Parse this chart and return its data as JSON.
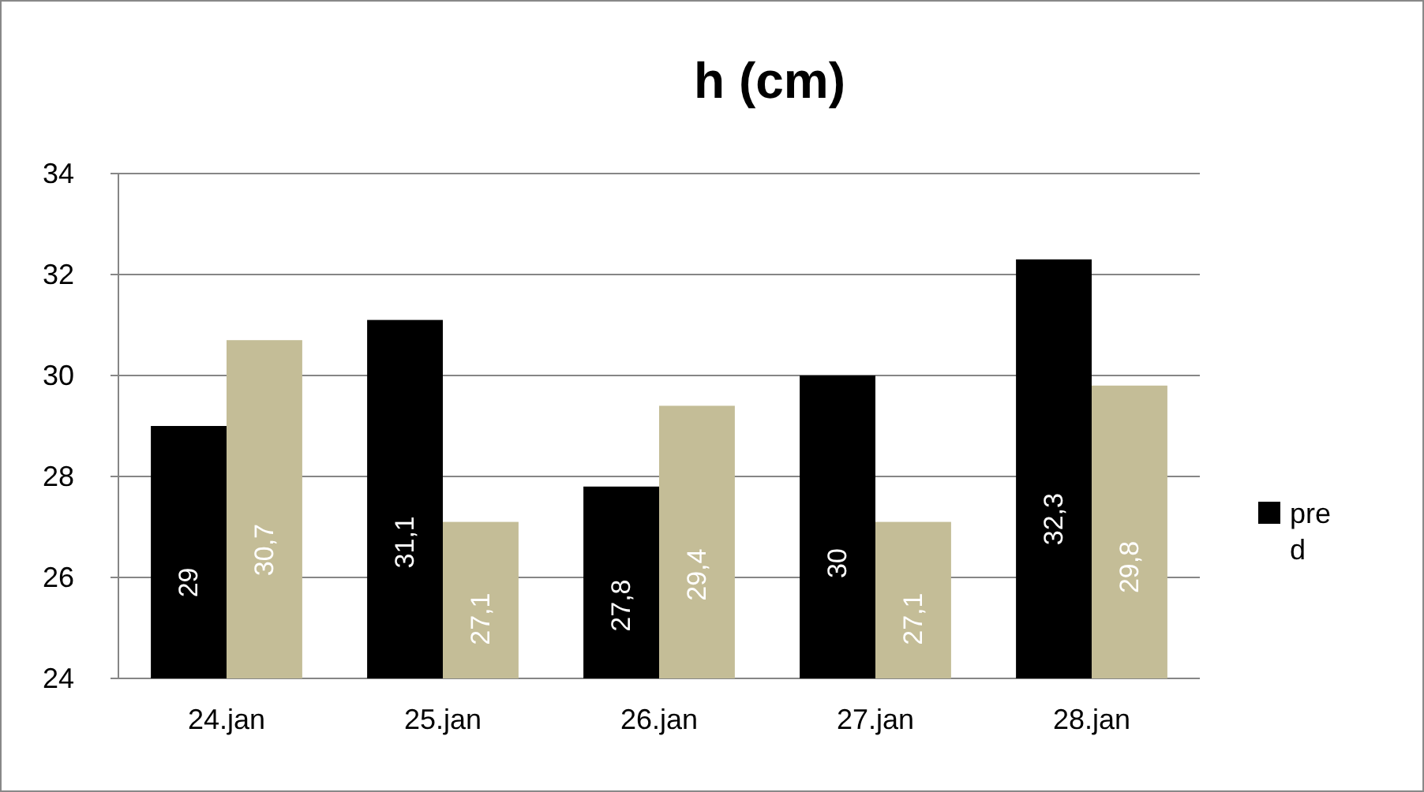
{
  "chart_data": {
    "type": "bar",
    "title": "h (cm)",
    "categories": [
      "24.jan",
      "25.jan",
      "26.jan",
      "27.jan",
      "28.jan"
    ],
    "series": [
      {
        "name": "pred",
        "color": "#000000",
        "values": [
          29,
          31.1,
          27.8,
          30,
          32.3
        ],
        "value_labels": [
          "29",
          "31,1",
          "27,8",
          "30",
          "32,3"
        ]
      },
      {
        "color": "#c4bd97",
        "values": [
          30.7,
          27.1,
          29.4,
          27.1,
          29.8
        ],
        "value_labels": [
          "30,7",
          "27,1",
          "29,4",
          "27,1",
          "29,8"
        ]
      }
    ],
    "ylim": [
      24,
      34
    ],
    "yticks": [
      24,
      26,
      28,
      30,
      32,
      34
    ],
    "grid": "y",
    "legend": "right"
  }
}
